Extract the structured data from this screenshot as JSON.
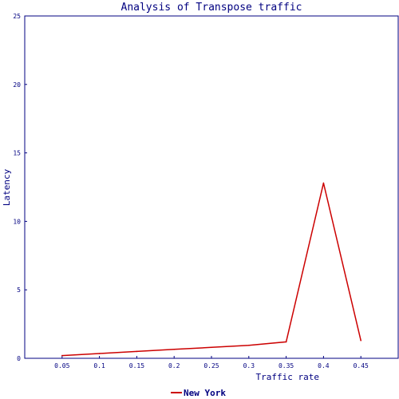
{
  "chart_data": {
    "type": "line",
    "title": "Analysis of Transpose traffic",
    "xlabel": "Traffic rate",
    "ylabel": "Latency",
    "xlim": [
      0,
      0.5
    ],
    "ylim": [
      0,
      25
    ],
    "x_ticks": [
      "0.05",
      "0.1",
      "0.15",
      "0.2",
      "0.25",
      "0.3",
      "0.35",
      "0.4",
      "0.45"
    ],
    "y_ticks": [
      "0",
      "5",
      "10",
      "15",
      "20",
      "25"
    ],
    "grid": false,
    "legend_position": "bottom-center",
    "series": [
      {
        "name": "New York",
        "color": "#cc0000",
        "x": [
          0.05,
          0.1,
          0.15,
          0.2,
          0.25,
          0.3,
          0.35,
          0.4,
          0.45
        ],
        "y": [
          0.2,
          0.35,
          0.5,
          0.65,
          0.8,
          0.95,
          1.2,
          12.8,
          1.3
        ]
      }
    ]
  }
}
